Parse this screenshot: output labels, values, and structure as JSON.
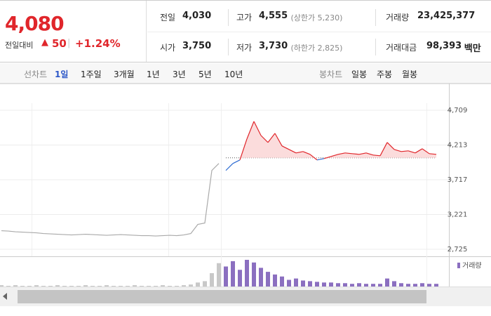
{
  "header": {
    "price": "4,080",
    "change_label": "전일대비",
    "change_arrow": "▲",
    "change": "50",
    "change_pct": "+1.24%"
  },
  "stats": [
    {
      "label": "전일",
      "value": "4,030"
    },
    {
      "label": "고가",
      "value": "4,555",
      "tone": "up",
      "note": "(상한가 5,230)"
    },
    {
      "label": "거래량",
      "value": "23,425,377"
    },
    {
      "label": "시가",
      "value": "3,750",
      "tone": "down"
    },
    {
      "label": "저가",
      "value": "3,730",
      "tone": "down",
      "note": "(하한가 2,825)"
    },
    {
      "label": "거래대금",
      "value": "98,393",
      "unit": "백만"
    }
  ],
  "tabs": {
    "line_label": "선차트",
    "periods": [
      "1일",
      "1주일",
      "3개월",
      "1년",
      "3년",
      "5년",
      "10년"
    ],
    "active": 0,
    "candle_label": "봉차트",
    "candles": [
      "일봉",
      "주봉",
      "월봉"
    ]
  },
  "chart_data": {
    "type": "line",
    "ylim": [
      2625,
      5000
    ],
    "yticks": [
      {
        "value": 2725,
        "label": "2,725"
      },
      {
        "value": 3221,
        "label": "3,221"
      },
      {
        "value": 3717,
        "label": "3,717"
      },
      {
        "value": 4213,
        "label": "4,213"
      },
      {
        "value": 4709,
        "label": "4,709"
      }
    ],
    "reference": 4030,
    "series": [
      {
        "color": "#aaaaaa",
        "values": [
          2990,
          2985,
          2975,
          2970,
          2965,
          2960,
          2950,
          2945,
          2940,
          2935,
          2930,
          2935,
          2940,
          2935,
          2930,
          2925,
          2930,
          2935,
          2930,
          2925,
          2920,
          2920,
          2915,
          2920,
          2925,
          2920,
          2930,
          2950,
          3080,
          3100,
          3850,
          3950,
          null,
          null,
          null,
          null,
          null,
          null,
          null,
          null,
          null,
          null,
          null,
          null,
          null,
          null,
          null,
          null,
          null,
          null,
          null,
          null,
          null,
          null,
          null,
          null,
          null,
          null,
          null,
          null,
          null,
          null,
          null
        ]
      },
      {
        "color_up": "#e0262b",
        "color_down": "#2d6bd2",
        "fill_up": "#fbdcdc",
        "values": [
          null,
          null,
          null,
          null,
          null,
          null,
          null,
          null,
          null,
          null,
          null,
          null,
          null,
          null,
          null,
          null,
          null,
          null,
          null,
          null,
          null,
          null,
          null,
          null,
          null,
          null,
          null,
          null,
          null,
          null,
          null,
          null,
          3850,
          3950,
          4000,
          4300,
          4550,
          4350,
          4250,
          4380,
          4200,
          4150,
          4100,
          4120,
          4080,
          4000,
          4020,
          4050,
          4080,
          4100,
          4090,
          4080,
          4100,
          4070,
          4060,
          4250,
          4150,
          4120,
          4130,
          4100,
          4160,
          4090,
          4080
        ]
      }
    ],
    "volume": {
      "name": "거래량",
      "color": "#8b6fc0",
      "history_color": "#c8c8c8",
      "values": [
        2,
        1,
        2,
        1,
        1,
        2,
        1,
        1,
        2,
        1,
        1,
        1,
        2,
        1,
        1,
        2,
        1,
        1,
        1,
        2,
        1,
        1,
        1,
        2,
        1,
        1,
        2,
        3,
        6,
        8,
        20,
        35,
        30,
        38,
        25,
        40,
        36,
        28,
        22,
        18,
        15,
        10,
        12,
        9,
        8,
        7,
        6,
        6,
        5,
        5,
        4,
        5,
        4,
        4,
        4,
        12,
        8,
        5,
        4,
        4,
        5,
        4,
        4
      ]
    }
  }
}
